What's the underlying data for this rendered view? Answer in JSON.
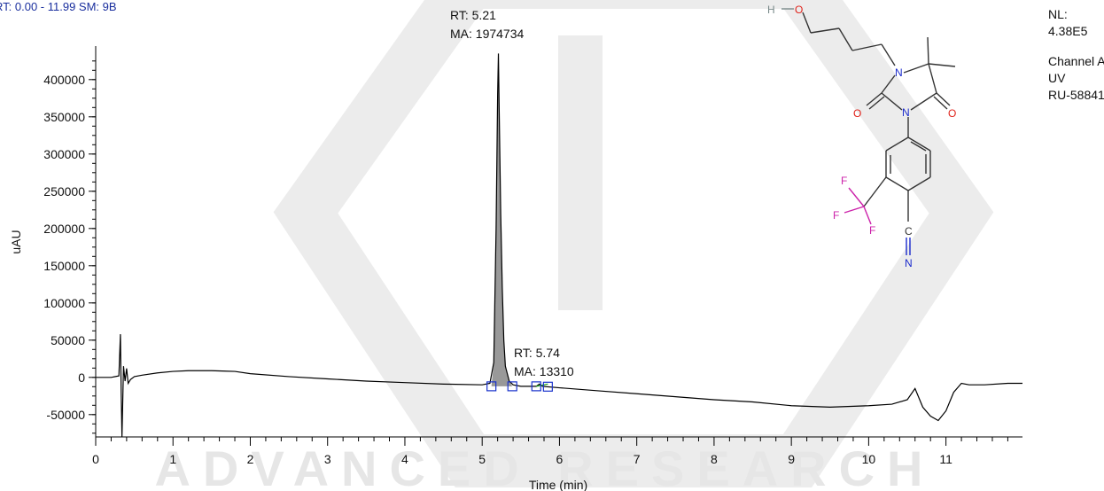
{
  "header": {
    "range_label": "RT: 0.00 - 11.99   SM: 9B"
  },
  "watermark": {
    "text": "ADVANCED RESEARCH"
  },
  "info_panel": {
    "lines": [
      "NL:",
      "4.38E5",
      "Channel A",
      "UV",
      "RU-58841"
    ]
  },
  "structure": {
    "atoms": {
      "h": "H",
      "o1": "O",
      "n1": "N",
      "o2": "O",
      "n2": "N",
      "o3": "O",
      "f1": "F",
      "f2": "F",
      "f3": "F",
      "c": "C",
      "n3": "N"
    }
  },
  "colors": {
    "trace": "#000000",
    "peak_fill": "#999999",
    "marker": "#1a33cc",
    "baseline": "#1aa31a",
    "oxygen": "#e0221a",
    "nitrogen": "#1a2acc",
    "fluorine": "#cc22aa",
    "bond": "#333333"
  },
  "chart_data": {
    "type": "line",
    "title": "",
    "xlabel": "Time (min)",
    "ylabel": "uAU",
    "xlim": [
      0,
      11.99
    ],
    "ylim": [
      -80000,
      445000
    ],
    "xticks": [
      0,
      1,
      2,
      3,
      4,
      5,
      6,
      7,
      8,
      9,
      10,
      11
    ],
    "yticks": [
      -50000,
      0,
      50000,
      100000,
      150000,
      200000,
      250000,
      300000,
      350000,
      400000
    ],
    "ytick_labels": [
      "-50000",
      "0",
      "50000",
      "100000",
      "150000",
      "200000",
      "250000",
      "300000",
      "350000",
      "400000"
    ],
    "grid": false,
    "series": [
      {
        "x": [
          0,
          0.2,
          0.3,
          0.32,
          0.33,
          0.34,
          0.36,
          0.38,
          0.4,
          0.42,
          0.45,
          0.5,
          0.6,
          0.8,
          1.0,
          1.2,
          1.5,
          1.8,
          2.0,
          2.5,
          3.0,
          3.5,
          4.0,
          4.5,
          5.0,
          5.1,
          5.15,
          5.18,
          5.2,
          5.21,
          5.22,
          5.24,
          5.26,
          5.28,
          5.3,
          5.35,
          5.4,
          5.5,
          5.7,
          5.74,
          5.78,
          6.0,
          6.5,
          7.0,
          7.5,
          8.0,
          8.5,
          9.0,
          9.5,
          10.0,
          10.3,
          10.5,
          10.6,
          10.7,
          10.8,
          10.9,
          11.0,
          11.1,
          11.2,
          11.3,
          11.5,
          11.8,
          11.99
        ],
        "y": [
          0,
          0,
          2000,
          58000,
          -20000,
          -80000,
          15000,
          -5000,
          12000,
          -8000,
          -3000,
          1000,
          3000,
          6000,
          8000,
          9000,
          9000,
          8000,
          5000,
          1000,
          -2000,
          -5000,
          -7000,
          -9000,
          -10000,
          -8000,
          20000,
          200000,
          380000,
          435000,
          360000,
          220000,
          120000,
          50000,
          15000,
          -5000,
          -10000,
          -12000,
          -12000,
          -9000,
          -12000,
          -14000,
          -18000,
          -22000,
          -26000,
          -30000,
          -33000,
          -38000,
          -40000,
          -38000,
          -36000,
          -30000,
          -15000,
          -40000,
          -52000,
          -58000,
          -45000,
          -20000,
          -8000,
          -10000,
          -10000,
          -8000,
          -8000
        ]
      }
    ],
    "annotations": [
      {
        "x": 5.21,
        "lines": [
          "RT: 5.21",
          "MA: 1974734"
        ]
      },
      {
        "x": 5.74,
        "lines": [
          "RT: 5.74",
          "MA: 13310"
        ]
      }
    ],
    "integration_markers": [
      {
        "x": 5.12,
        "y": -12000
      },
      {
        "x": 5.39,
        "y": -12000
      },
      {
        "x": 5.7,
        "y": -12000
      },
      {
        "x": 5.85,
        "y": -12500
      }
    ]
  }
}
